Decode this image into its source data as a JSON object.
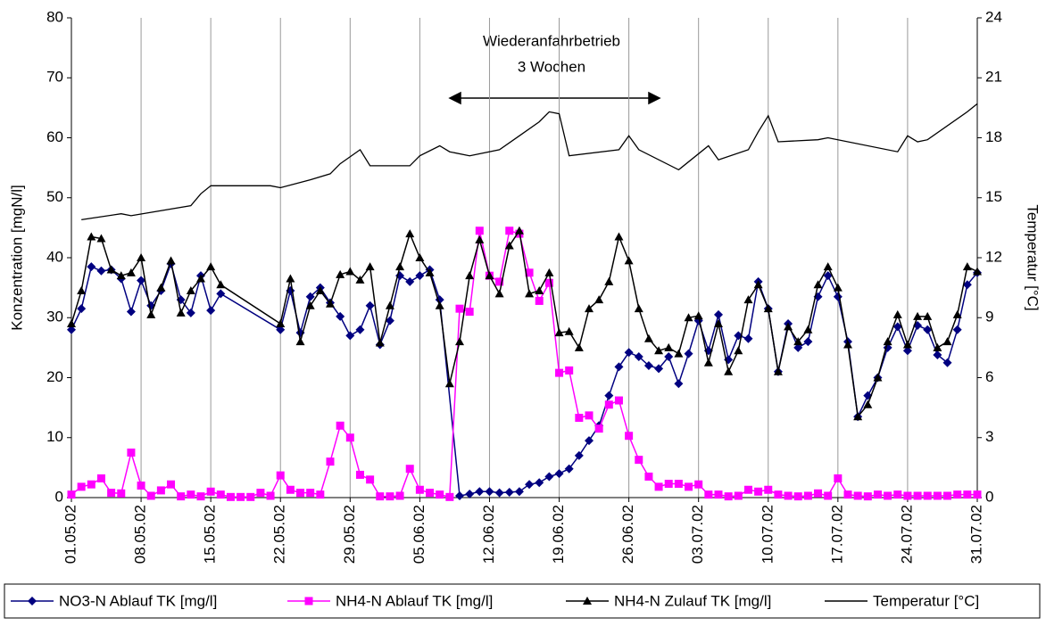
{
  "chart_data": {
    "type": "line",
    "annotation": [
      "Wiederanfahrbetrieb",
      "3 Wochen"
    ],
    "ylabel": "Konzentration [mgN/l]",
    "y2label": "Temperatur [°C]",
    "xlim": [
      "01.05.02",
      "31.07.02"
    ],
    "xticks": [
      "01.05.02",
      "08.05.02",
      "15.05.02",
      "22.05.02",
      "29.05.02",
      "05.06.02",
      "12.06.02",
      "19.06.02",
      "26.06.02",
      "03.07.02",
      "10.07.02",
      "17.07.02",
      "24.07.02",
      "31.07.02"
    ],
    "ylim": [
      0,
      80
    ],
    "yticks": [
      0,
      10,
      20,
      30,
      40,
      50,
      60,
      70,
      80
    ],
    "y2lim": [
      0,
      24
    ],
    "y2ticks": [
      0,
      3,
      6,
      9,
      12,
      15,
      18,
      21,
      24
    ],
    "grid": true,
    "legend": "bottom",
    "series": [
      {
        "name": "NO3-N Ablauf TK [mg/l]",
        "color": "#000080",
        "marker": "diamond",
        "x": [
          "01.05.02",
          "02.05.02",
          "03.05.02",
          "04.05.02",
          "05.05.02",
          "06.05.02",
          "07.05.02",
          "08.05.02",
          "09.05.02",
          "10.05.02",
          "11.05.02",
          "12.05.02",
          "13.05.02",
          "14.05.02",
          "15.05.02",
          "16.05.02",
          "22.05.02",
          "23.05.02",
          "24.05.02",
          "25.05.02",
          "26.05.02",
          "27.05.02",
          "28.05.02",
          "29.05.02",
          "30.05.02",
          "31.05.02",
          "01.06.02",
          "02.06.02",
          "03.06.02",
          "04.06.02",
          "05.06.02",
          "06.06.02",
          "07.06.02",
          "09.06.02",
          "10.06.02",
          "11.06.02",
          "12.06.02",
          "13.06.02",
          "14.06.02",
          "15.06.02",
          "16.06.02",
          "17.06.02",
          "18.06.02",
          "19.06.02",
          "20.06.02",
          "21.06.02",
          "22.06.02",
          "23.06.02",
          "24.06.02",
          "25.06.02",
          "26.06.02",
          "27.06.02",
          "28.06.02",
          "29.06.02",
          "30.06.02",
          "01.07.02",
          "02.07.02",
          "03.07.02",
          "04.07.02",
          "05.07.02",
          "06.07.02",
          "07.07.02",
          "08.07.02",
          "09.07.02",
          "10.07.02",
          "11.07.02",
          "12.07.02",
          "13.07.02",
          "14.07.02",
          "15.07.02",
          "16.07.02",
          "17.07.02",
          "18.07.02",
          "19.07.02",
          "20.07.02",
          "21.07.02",
          "22.07.02",
          "23.07.02",
          "24.07.02",
          "25.07.02",
          "26.07.02",
          "27.07.02",
          "28.07.02",
          "29.07.02",
          "30.07.02",
          "31.07.02"
        ],
        "values": [
          28,
          31.5,
          38.5,
          37.8,
          38,
          36.5,
          31,
          36.2,
          32,
          34.5,
          39,
          33,
          30.8,
          37,
          31.2,
          34,
          28,
          34.5,
          27.5,
          33.5,
          35,
          32.5,
          30.2,
          27,
          28,
          32,
          25.5,
          29.5,
          37,
          36,
          37,
          38,
          33,
          0.3,
          0.6,
          1,
          1,
          0.8,
          0.9,
          1,
          2.2,
          2.5,
          3.5,
          4,
          4.8,
          7,
          9.5,
          12,
          17,
          21.8,
          24.2,
          23.5,
          22,
          21.5,
          23.5,
          19,
          24,
          29.5,
          24.5,
          30.5,
          23,
          27,
          26.5,
          36,
          31.5,
          21,
          29,
          25,
          26,
          33.5,
          37,
          33.5,
          26,
          13.5,
          17,
          20,
          25,
          28.5,
          24.5,
          28.7,
          28,
          23.8,
          22.5,
          28,
          35.5,
          37.5
        ]
      },
      {
        "name": "NH4-N Ablauf TK [mg/l]",
        "color": "#ff00ff",
        "marker": "square",
        "x": [
          "01.05.02",
          "02.05.02",
          "03.05.02",
          "04.05.02",
          "05.05.02",
          "06.05.02",
          "07.05.02",
          "08.05.02",
          "09.05.02",
          "10.05.02",
          "11.05.02",
          "12.05.02",
          "13.05.02",
          "14.05.02",
          "15.05.02",
          "16.05.02",
          "17.05.02",
          "18.05.02",
          "19.05.02",
          "20.05.02",
          "21.05.02",
          "22.05.02",
          "23.05.02",
          "24.05.02",
          "25.05.02",
          "26.05.02",
          "27.05.02",
          "28.05.02",
          "29.05.02",
          "30.05.02",
          "31.05.02",
          "01.06.02",
          "02.06.02",
          "03.06.02",
          "04.06.02",
          "05.06.02",
          "06.06.02",
          "07.06.02",
          "08.06.02",
          "09.06.02",
          "10.06.02",
          "11.06.02",
          "12.06.02",
          "13.06.02",
          "14.06.02",
          "15.06.02",
          "16.06.02",
          "17.06.02",
          "18.06.02",
          "19.06.02",
          "20.06.02",
          "21.06.02",
          "22.06.02",
          "23.06.02",
          "24.06.02",
          "25.06.02",
          "26.06.02",
          "27.06.02",
          "28.06.02",
          "29.06.02",
          "30.06.02",
          "01.07.02",
          "02.07.02",
          "03.07.02",
          "04.07.02",
          "05.07.02",
          "06.07.02",
          "07.07.02",
          "08.07.02",
          "09.07.02",
          "10.07.02",
          "11.07.02",
          "12.07.02",
          "13.07.02",
          "14.07.02",
          "15.07.02",
          "16.07.02",
          "17.07.02",
          "18.07.02",
          "19.07.02",
          "20.07.02",
          "21.07.02",
          "22.07.02",
          "23.07.02",
          "24.07.02",
          "25.07.02",
          "26.07.02",
          "27.07.02",
          "28.07.02",
          "29.07.02",
          "30.07.02",
          "31.07.02"
        ],
        "values": [
          0.5,
          1.8,
          2.2,
          3.2,
          0.8,
          0.7,
          7.5,
          2,
          0.3,
          1.2,
          2.2,
          0.2,
          0.5,
          0.2,
          1,
          0.5,
          0.1,
          0.1,
          0.1,
          0.8,
          0.3,
          3.7,
          1.3,
          0.8,
          0.8,
          0.5,
          6,
          12,
          10,
          3.8,
          3,
          0.2,
          0.2,
          0.3,
          4.8,
          1.3,
          0.8,
          0.5,
          0.1,
          31.5,
          31,
          44.5,
          37,
          36,
          44.5,
          44,
          37.5,
          32.8,
          35.8,
          20.8,
          21.2,
          13.3,
          13.7,
          11.5,
          15.5,
          16.2,
          10.3,
          6.3,
          3.5,
          1.8,
          2.3,
          2.3,
          1.8,
          2.2,
          0.5,
          0.5,
          0.2,
          0.3,
          1.3,
          1,
          1.3,
          0.5,
          0.3,
          0.2,
          0.3,
          0.7,
          0.3,
          3.2,
          0.5,
          0.3,
          0.2,
          0.5,
          0.3,
          0.5,
          0.3,
          0.3,
          0.3,
          0.3,
          0.3,
          0.5,
          0.5,
          0.5
        ]
      },
      {
        "name": "NH4-N Zulauf TK [mg/l]",
        "color": "#000000",
        "marker": "triangle",
        "x": [
          "01.05.02",
          "02.05.02",
          "03.05.02",
          "04.05.02",
          "05.05.02",
          "06.05.02",
          "07.05.02",
          "08.05.02",
          "09.05.02",
          "10.05.02",
          "11.05.02",
          "12.05.02",
          "13.05.02",
          "14.05.02",
          "15.05.02",
          "16.05.02",
          "22.05.02",
          "23.05.02",
          "24.05.02",
          "25.05.02",
          "26.05.02",
          "27.05.02",
          "28.05.02",
          "29.05.02",
          "30.05.02",
          "31.05.02",
          "01.06.02",
          "02.06.02",
          "03.06.02",
          "04.06.02",
          "05.06.02",
          "06.06.02",
          "07.06.02",
          "08.06.02",
          "09.06.02",
          "10.06.02",
          "11.06.02",
          "12.06.02",
          "13.06.02",
          "14.06.02",
          "15.06.02",
          "16.06.02",
          "17.06.02",
          "18.06.02",
          "19.06.02",
          "20.06.02",
          "21.06.02",
          "22.06.02",
          "23.06.02",
          "24.06.02",
          "25.06.02",
          "26.06.02",
          "27.06.02",
          "28.06.02",
          "29.06.02",
          "30.06.02",
          "01.07.02",
          "02.07.02",
          "03.07.02",
          "04.07.02",
          "05.07.02",
          "06.07.02",
          "07.07.02",
          "08.07.02",
          "09.07.02",
          "10.07.02",
          "11.07.02",
          "12.07.02",
          "13.07.02",
          "14.07.02",
          "15.07.02",
          "16.07.02",
          "17.07.02",
          "18.07.02",
          "19.07.02",
          "20.07.02",
          "21.07.02",
          "22.07.02",
          "23.07.02",
          "24.07.02",
          "25.07.02",
          "26.07.02",
          "27.07.02",
          "28.07.02",
          "29.07.02",
          "30.07.02",
          "31.07.02"
        ],
        "values": [
          29,
          34.5,
          43.5,
          43.2,
          38,
          37,
          37.5,
          40,
          30.5,
          35,
          39.5,
          30.8,
          34.5,
          36.5,
          38.5,
          35.5,
          29,
          36.5,
          26,
          32,
          34.5,
          32.3,
          37.2,
          37.7,
          36.3,
          38.5,
          25.8,
          32,
          38.5,
          44,
          40,
          37.5,
          32,
          19,
          26,
          37,
          43,
          37,
          34,
          42,
          44.5,
          34,
          34.5,
          37.5,
          27.5,
          27.7,
          25,
          31.5,
          33,
          36,
          43.5,
          39.5,
          31.5,
          26.5,
          24.5,
          25,
          24,
          30,
          30.3,
          22.5,
          29,
          21,
          24.5,
          33,
          35.5,
          31.5,
          21,
          28.5,
          26,
          28,
          35.5,
          38.5,
          35,
          25.5,
          13.5,
          15.5,
          20,
          26,
          30.5,
          25.5,
          30.2,
          30.2,
          25,
          26,
          30.5,
          38.5,
          37.7
        ]
      },
      {
        "name": "Temperatur [°C]",
        "color": "#000000",
        "marker": "none",
        "axis": "y2",
        "x": [
          "02.05.02",
          "06.05.02",
          "07.05.02",
          "13.05.02",
          "14.05.02",
          "15.05.02",
          "21.05.02",
          "22.05.02",
          "25.05.02",
          "27.05.02",
          "28.05.02",
          "30.05.02",
          "31.05.02",
          "04.06.02",
          "05.06.02",
          "07.06.02",
          "08.06.02",
          "10.06.02",
          "13.06.02",
          "15.06.02",
          "17.06.02",
          "18.06.02",
          "19.06.02",
          "20.06.02",
          "25.06.02",
          "26.06.02",
          "27.06.02",
          "01.07.02",
          "04.07.02",
          "05.07.02",
          "08.07.02",
          "09.07.02",
          "10.07.02",
          "11.07.02",
          "15.07.02",
          "16.07.02",
          "23.07.02",
          "24.07.02",
          "25.07.02",
          "26.07.02",
          "30.07.02",
          "31.07.02"
        ],
        "values": [
          13.9,
          14.2,
          14.1,
          14.6,
          15.2,
          15.6,
          15.6,
          15.5,
          15.9,
          16.2,
          16.7,
          17.4,
          16.6,
          16.6,
          17.1,
          17.6,
          17.3,
          17.1,
          17.4,
          18.1,
          18.8,
          19.3,
          19.2,
          17.1,
          17.4,
          18.1,
          17.4,
          16.4,
          17.6,
          16.9,
          17.4,
          18.3,
          19.1,
          17.8,
          17.9,
          18.0,
          17.3,
          18.1,
          17.8,
          17.9,
          19.3,
          19.7
        ]
      }
    ]
  }
}
